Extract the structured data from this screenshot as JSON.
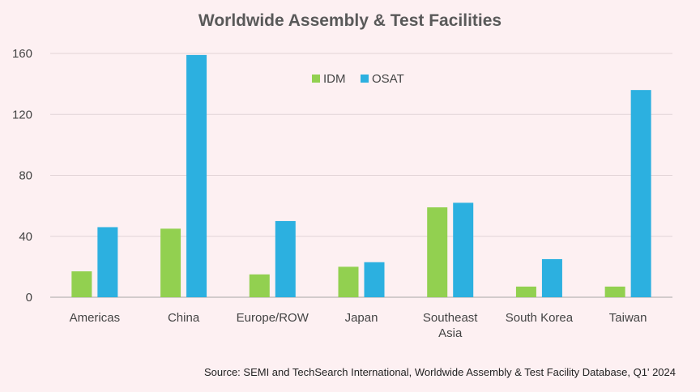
{
  "chart_data": {
    "type": "bar",
    "title": "Worldwide Assembly & Test Facilities",
    "categories": [
      "Americas",
      "China",
      "Europe/ROW",
      "Japan",
      "Southeast Asia",
      "South Korea",
      "Taiwan"
    ],
    "series": [
      {
        "name": "IDM",
        "color": "#92d050",
        "values": [
          17,
          45,
          15,
          20,
          59,
          7,
          7
        ]
      },
      {
        "name": "OSAT",
        "color": "#2cb0e0",
        "values": [
          46,
          159,
          50,
          23,
          62,
          25,
          136
        ]
      }
    ],
    "ylim": [
      0,
      160
    ],
    "yticks": [
      0,
      40,
      80,
      120,
      160
    ],
    "grid": true,
    "legend_position": "top-center"
  },
  "source": "Source: SEMI and TechSearch International, Worldwide Assembly & Test Facility Database, Q1' 2024"
}
